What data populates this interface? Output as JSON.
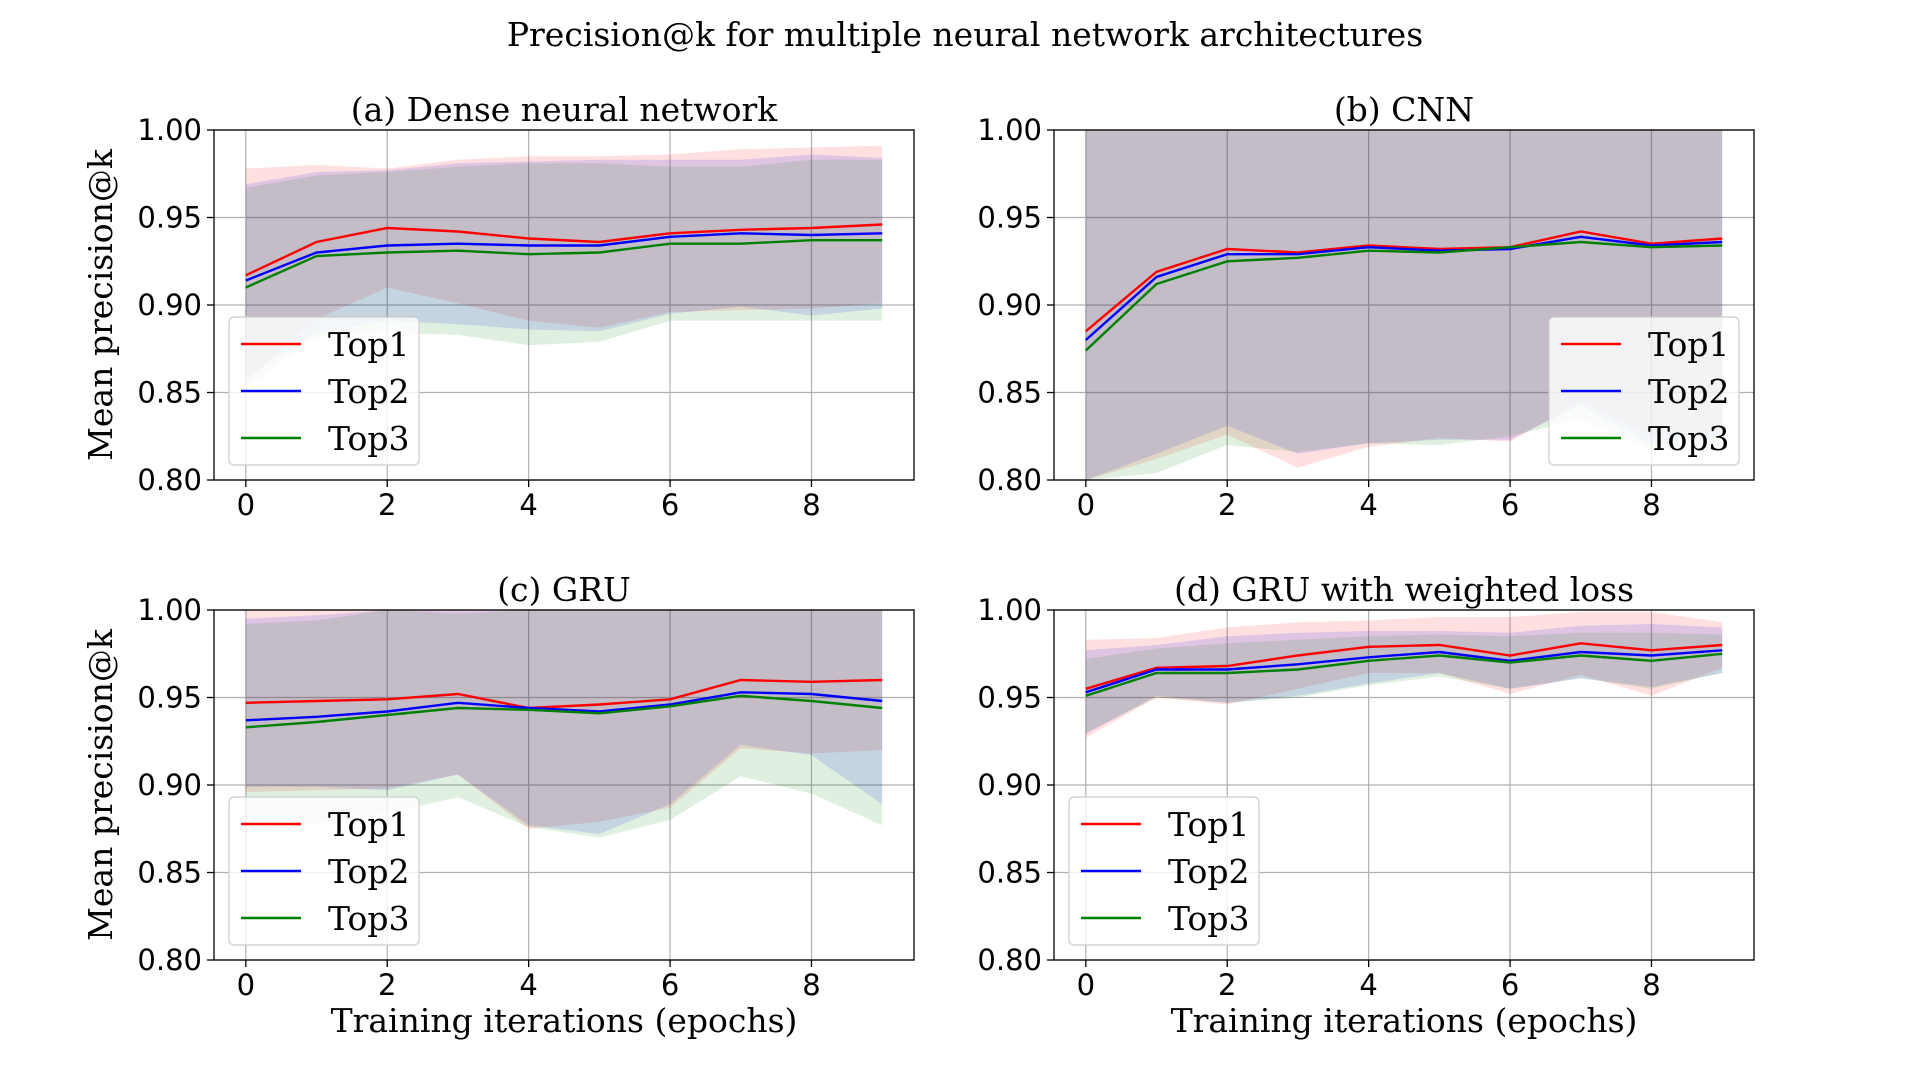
{
  "figure": {
    "suptitle": "Precision@k for multiple neural network architectures"
  },
  "chart_data": [
    {
      "type": "line",
      "title": "(a) Dense neural network",
      "xlabel": "",
      "ylabel": "Mean precision@k",
      "x": [
        0,
        1,
        2,
        3,
        4,
        5,
        6,
        7,
        8,
        9
      ],
      "xticks": [
        0,
        2,
        4,
        6,
        8
      ],
      "yticks": [
        "0.80",
        "0.85",
        "0.90",
        "0.95",
        "1.00"
      ],
      "xlim": [
        -0.45,
        9.45
      ],
      "ylim": [
        0.8,
        1.0
      ],
      "grid": true,
      "legend_position": "lower-left",
      "series": [
        {
          "name": "Top1",
          "color": "#ff0000",
          "values": [
            0.917,
            0.936,
            0.944,
            0.942,
            0.938,
            0.936,
            0.941,
            0.943,
            0.944,
            0.946
          ],
          "upper": [
            0.978,
            0.98,
            0.978,
            0.983,
            0.985,
            0.985,
            0.986,
            0.989,
            0.99,
            0.991
          ],
          "lower": [
            0.856,
            0.892,
            0.91,
            0.901,
            0.891,
            0.887,
            0.896,
            0.897,
            0.898,
            0.901
          ]
        },
        {
          "name": "Top2",
          "color": "#0000ff",
          "values": [
            0.914,
            0.93,
            0.934,
            0.935,
            0.934,
            0.934,
            0.939,
            0.941,
            0.94,
            0.941
          ],
          "upper": [
            0.969,
            0.976,
            0.977,
            0.981,
            0.982,
            0.983,
            0.983,
            0.983,
            0.986,
            0.984
          ],
          "lower": [
            0.859,
            0.884,
            0.891,
            0.889,
            0.886,
            0.885,
            0.895,
            0.899,
            0.894,
            0.898
          ]
        },
        {
          "name": "Top3",
          "color": "#008000",
          "values": [
            0.91,
            0.928,
            0.93,
            0.931,
            0.929,
            0.93,
            0.935,
            0.935,
            0.937,
            0.937
          ],
          "upper": [
            0.967,
            0.974,
            0.976,
            0.979,
            0.981,
            0.981,
            0.979,
            0.979,
            0.983,
            0.983
          ],
          "lower": [
            0.853,
            0.882,
            0.884,
            0.883,
            0.877,
            0.879,
            0.891,
            0.891,
            0.891,
            0.891
          ]
        }
      ]
    },
    {
      "type": "line",
      "title": "(b) CNN",
      "xlabel": "",
      "ylabel": "",
      "x": [
        0,
        1,
        2,
        3,
        4,
        5,
        6,
        7,
        8,
        9
      ],
      "xticks": [
        0,
        2,
        4,
        6,
        8
      ],
      "yticks": [
        "0.80",
        "0.85",
        "0.90",
        "0.95",
        "1.00"
      ],
      "xlim": [
        -0.45,
        9.45
      ],
      "ylim": [
        0.8,
        1.0
      ],
      "grid": true,
      "legend_position": "lower-right",
      "series": [
        {
          "name": "Top1",
          "color": "#ff0000",
          "values": [
            0.885,
            0.919,
            0.932,
            0.93,
            0.934,
            0.932,
            0.933,
            0.942,
            0.935,
            0.938
          ],
          "upper": [
            1.02,
            1.02,
            1.02,
            1.02,
            1.02,
            1.02,
            1.02,
            1.02,
            1.02,
            1.02
          ],
          "lower": [
            0.78,
            0.812,
            0.826,
            0.807,
            0.819,
            0.824,
            0.822,
            0.845,
            0.825,
            0.828
          ]
        },
        {
          "name": "Top2",
          "color": "#0000ff",
          "values": [
            0.88,
            0.916,
            0.929,
            0.929,
            0.933,
            0.931,
            0.932,
            0.939,
            0.934,
            0.936
          ],
          "upper": [
            1.02,
            1.02,
            1.02,
            1.02,
            1.02,
            1.02,
            1.02,
            1.02,
            1.02,
            1.02
          ],
          "lower": [
            0.772,
            0.815,
            0.831,
            0.815,
            0.821,
            0.823,
            0.823,
            0.843,
            0.82,
            0.825
          ]
        },
        {
          "name": "Top3",
          "color": "#008000",
          "values": [
            0.874,
            0.912,
            0.925,
            0.927,
            0.931,
            0.93,
            0.933,
            0.936,
            0.933,
            0.934
          ],
          "upper": [
            1.02,
            1.02,
            1.02,
            1.02,
            1.02,
            1.02,
            1.02,
            1.02,
            1.02,
            1.02
          ],
          "lower": [
            0.769,
            0.804,
            0.82,
            0.816,
            0.821,
            0.82,
            0.825,
            0.835,
            0.817,
            0.82
          ]
        }
      ]
    },
    {
      "type": "line",
      "title": "(c) GRU",
      "xlabel": "Training iterations (epochs)",
      "ylabel": "Mean precision@k",
      "x": [
        0,
        1,
        2,
        3,
        4,
        5,
        6,
        7,
        8,
        9
      ],
      "xticks": [
        0,
        2,
        4,
        6,
        8
      ],
      "yticks": [
        "0.80",
        "0.85",
        "0.90",
        "0.95",
        "1.00"
      ],
      "xlim": [
        -0.45,
        9.45
      ],
      "ylim": [
        0.8,
        1.0
      ],
      "grid": true,
      "legend_position": "lower-left",
      "series": [
        {
          "name": "Top1",
          "color": "#ff0000",
          "values": [
            0.947,
            0.948,
            0.949,
            0.952,
            0.944,
            0.946,
            0.949,
            0.96,
            0.959,
            0.96
          ],
          "upper": [
            1.02,
            1.02,
            1.02,
            1.02,
            1.02,
            1.02,
            1.02,
            1.02,
            1.02,
            1.02
          ],
          "lower": [
            0.896,
            0.897,
            0.898,
            0.906,
            0.875,
            0.879,
            0.887,
            0.921,
            0.918,
            0.92
          ]
        },
        {
          "name": "Top2",
          "color": "#0000ff",
          "values": [
            0.937,
            0.939,
            0.942,
            0.947,
            0.944,
            0.942,
            0.946,
            0.953,
            0.952,
            0.948
          ],
          "upper": [
            0.995,
            0.997,
            1.02,
            1.02,
            1.02,
            1.02,
            1.02,
            1.02,
            1.02,
            1.02
          ],
          "lower": [
            0.899,
            0.899,
            0.897,
            0.906,
            0.877,
            0.872,
            0.889,
            0.923,
            0.917,
            0.889
          ]
        },
        {
          "name": "Top3",
          "color": "#008000",
          "values": [
            0.933,
            0.936,
            0.94,
            0.944,
            0.943,
            0.941,
            0.945,
            0.951,
            0.948,
            0.944
          ],
          "upper": [
            0.992,
            0.994,
            1.0,
            0.998,
            1.02,
            1.02,
            1.02,
            1.02,
            1.02,
            1.02
          ],
          "lower": [
            0.872,
            0.878,
            0.884,
            0.893,
            0.876,
            0.87,
            0.88,
            0.905,
            0.895,
            0.877
          ]
        }
      ]
    },
    {
      "type": "line",
      "title": "(d) GRU with weighted loss",
      "xlabel": "Training iterations (epochs)",
      "ylabel": "",
      "x": [
        0,
        1,
        2,
        3,
        4,
        5,
        6,
        7,
        8,
        9
      ],
      "xticks": [
        0,
        2,
        4,
        6,
        8
      ],
      "yticks": [
        "0.80",
        "0.85",
        "0.90",
        "0.95",
        "1.00"
      ],
      "xlim": [
        -0.45,
        9.45
      ],
      "ylim": [
        0.8,
        1.0
      ],
      "grid": true,
      "legend_position": "lower-left",
      "series": [
        {
          "name": "Top1",
          "color": "#ff0000",
          "values": [
            0.955,
            0.967,
            0.968,
            0.974,
            0.979,
            0.98,
            0.974,
            0.981,
            0.977,
            0.98
          ],
          "upper": [
            0.983,
            0.984,
            0.99,
            0.993,
            0.994,
            0.996,
            0.996,
            0.999,
            0.999,
            0.993
          ],
          "lower": [
            0.927,
            0.95,
            0.946,
            0.955,
            0.964,
            0.964,
            0.952,
            0.963,
            0.951,
            0.967
          ]
        },
        {
          "name": "Top2",
          "color": "#0000ff",
          "values": [
            0.953,
            0.966,
            0.966,
            0.969,
            0.973,
            0.976,
            0.971,
            0.976,
            0.974,
            0.977
          ],
          "upper": [
            0.977,
            0.98,
            0.985,
            0.987,
            0.988,
            0.988,
            0.987,
            0.991,
            0.992,
            0.99
          ],
          "lower": [
            0.929,
            0.951,
            0.947,
            0.951,
            0.958,
            0.964,
            0.955,
            0.961,
            0.956,
            0.964
          ]
        },
        {
          "name": "Top3",
          "color": "#008000",
          "values": [
            0.951,
            0.964,
            0.964,
            0.966,
            0.971,
            0.974,
            0.97,
            0.974,
            0.971,
            0.975
          ],
          "upper": [
            0.972,
            0.978,
            0.981,
            0.983,
            0.985,
            0.986,
            0.985,
            0.987,
            0.987,
            0.986
          ],
          "lower": [
            0.93,
            0.95,
            0.947,
            0.95,
            0.957,
            0.962,
            0.955,
            0.961,
            0.955,
            0.964
          ]
        }
      ]
    }
  ]
}
